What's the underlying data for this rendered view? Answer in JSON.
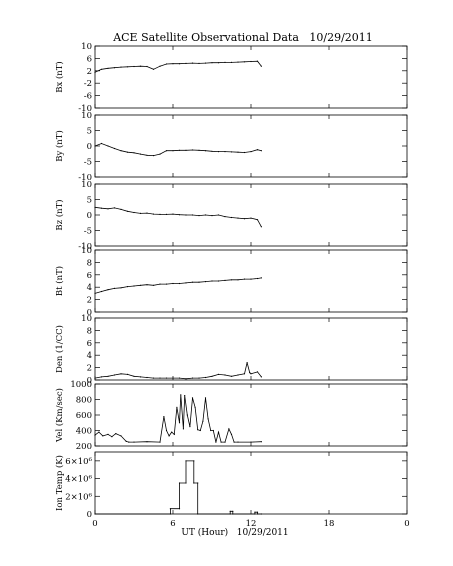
{
  "chart_data": {
    "type": "line",
    "title": "ACE Satellite Observational Data   10/29/2011",
    "xlabel": "UT (Hour)   10/29/2011",
    "xlim": [
      0,
      24
    ],
    "x_ticks": [
      "0",
      "6",
      "12",
      "18",
      "0"
    ],
    "panels": [
      {
        "key": "bx",
        "ylabel": "Bx (nT)",
        "ylim": [
          -10,
          10
        ],
        "y_ticks": [
          "10",
          "6",
          "2",
          "-2",
          "-6",
          "-10"
        ],
        "y_tick_values": [
          10,
          6,
          2,
          -2,
          -6,
          -10
        ],
        "series": {
          "x": [
            0,
            0.5,
            1,
            1.5,
            2,
            2.5,
            3,
            3.5,
            4,
            4.5,
            5,
            5.5,
            6,
            6.5,
            7,
            7.5,
            8,
            8.5,
            9,
            9.5,
            10,
            10.5,
            11,
            11.5,
            12,
            12.5,
            12.8
          ],
          "y": [
            1.5,
            2.5,
            2.8,
            3.0,
            3.2,
            3.3,
            3.4,
            3.5,
            3.4,
            2.5,
            3.5,
            4.2,
            4.3,
            4.3,
            4.4,
            4.5,
            4.4,
            4.5,
            4.6,
            4.6,
            4.7,
            4.7,
            4.8,
            4.9,
            5.0,
            5.1,
            3.5
          ]
        }
      },
      {
        "key": "by",
        "ylabel": "By (nT)",
        "ylim": [
          -10,
          10
        ],
        "y_ticks": [
          "10",
          "5",
          "0",
          "-5",
          "-10"
        ],
        "y_tick_values": [
          10,
          5,
          0,
          -5,
          -10
        ],
        "series": {
          "x": [
            0,
            0.5,
            1,
            1.5,
            2,
            2.5,
            3,
            3.5,
            4,
            4.5,
            5,
            5.5,
            6,
            6.5,
            7,
            7.5,
            8,
            8.5,
            9,
            9.5,
            10,
            10.5,
            11,
            11.5,
            12,
            12.5,
            12.8
          ],
          "y": [
            0,
            0.8,
            0,
            -0.8,
            -1.5,
            -2.0,
            -2.2,
            -2.6,
            -3.0,
            -3.1,
            -2.6,
            -1.5,
            -1.5,
            -1.4,
            -1.4,
            -1.3,
            -1.4,
            -1.5,
            -1.7,
            -1.8,
            -1.8,
            -1.9,
            -2.0,
            -2.1,
            -1.8,
            -1.2,
            -1.5
          ]
        }
      },
      {
        "key": "bz",
        "ylabel": "Bz (nT)",
        "ylim": [
          -10,
          10
        ],
        "y_ticks": [
          "10",
          "5",
          "0",
          "-5",
          "-10"
        ],
        "y_tick_values": [
          10,
          5,
          0,
          -5,
          -10
        ],
        "series": {
          "x": [
            0,
            0.5,
            1,
            1.5,
            2,
            2.5,
            3,
            3.5,
            4,
            4.5,
            5,
            5.5,
            6,
            6.5,
            7,
            7.5,
            8,
            8.5,
            9,
            9.5,
            10,
            10.5,
            11,
            11.5,
            12,
            12.5,
            12.8
          ],
          "y": [
            2.5,
            2.2,
            2.0,
            2.3,
            1.8,
            1.2,
            0.8,
            0.5,
            0.6,
            0.3,
            0.2,
            0.2,
            0.3,
            0.1,
            0,
            0,
            -0.2,
            0,
            -0.2,
            0,
            -0.5,
            -0.8,
            -1.0,
            -1.2,
            -1.0,
            -1.5,
            -3.8
          ]
        }
      },
      {
        "key": "bt",
        "ylabel": "Bt (nT)",
        "ylim": [
          0,
          10
        ],
        "y_ticks": [
          "10",
          "8",
          "6",
          "4",
          "2",
          "0"
        ],
        "y_tick_values": [
          10,
          8,
          6,
          4,
          2,
          0
        ],
        "series": {
          "x": [
            0,
            0.5,
            1,
            1.5,
            2,
            2.5,
            3,
            3.5,
            4,
            4.5,
            5,
            5.5,
            6,
            6.5,
            7,
            7.5,
            8,
            8.5,
            9,
            9.5,
            10,
            10.5,
            11,
            11.5,
            12,
            12.5,
            12.8
          ],
          "y": [
            3.0,
            3.3,
            3.6,
            3.8,
            3.9,
            4.1,
            4.2,
            4.3,
            4.4,
            4.3,
            4.5,
            4.5,
            4.6,
            4.6,
            4.7,
            4.8,
            4.8,
            4.9,
            5.0,
            5.0,
            5.1,
            5.2,
            5.2,
            5.3,
            5.3,
            5.4,
            5.5
          ]
        }
      },
      {
        "key": "den",
        "ylabel": "Den (1/CC)",
        "ylim": [
          0,
          10
        ],
        "y_ticks": [
          "10",
          "8",
          "6",
          "4",
          "2",
          "0"
        ],
        "y_tick_values": [
          10,
          8,
          6,
          4,
          2,
          0
        ],
        "series": {
          "x": [
            0,
            0.5,
            1,
            1.5,
            2,
            2.5,
            3,
            3.5,
            4,
            4.5,
            5,
            5.5,
            6,
            6.5,
            7,
            7.5,
            8,
            8.5,
            9,
            9.5,
            10,
            10.5,
            11,
            11.5,
            11.7,
            11.9,
            12,
            12.5,
            12.8
          ],
          "y": [
            0.3,
            0.5,
            0.6,
            0.8,
            1.0,
            0.9,
            0.6,
            0.5,
            0.4,
            0.3,
            0.3,
            0.3,
            0.3,
            0.3,
            0.2,
            0.3,
            0.3,
            0.4,
            0.6,
            0.9,
            0.8,
            0.6,
            0.8,
            1.0,
            2.8,
            1.2,
            1.0,
            1.3,
            0.5
          ]
        }
      },
      {
        "key": "vel",
        "ylabel": "Vel (Km/sec)",
        "ylim": [
          200,
          1000
        ],
        "y_ticks": [
          "1000",
          "800",
          "600",
          "400",
          "200"
        ],
        "y_tick_values": [
          1000,
          800,
          600,
          400,
          200
        ],
        "series": {
          "x": [
            0,
            0.3,
            0.6,
            1,
            1.3,
            1.6,
            2,
            2.4,
            2.6,
            3,
            4,
            5,
            5.3,
            5.5,
            5.7,
            5.9,
            6.1,
            6.3,
            6.5,
            6.6,
            6.8,
            6.9,
            7.1,
            7.3,
            7.5,
            7.7,
            7.9,
            8.1,
            8.3,
            8.5,
            8.7,
            8.9,
            9.1,
            9.3,
            9.5,
            9.7,
            10,
            10.3,
            10.5,
            10.7,
            11,
            12,
            12.8
          ],
          "y": [
            340,
            380,
            330,
            350,
            320,
            360,
            330,
            260,
            250,
            250,
            255,
            250,
            580,
            400,
            330,
            380,
            350,
            700,
            500,
            860,
            420,
            850,
            600,
            450,
            820,
            700,
            410,
            400,
            520,
            820,
            550,
            400,
            400,
            250,
            380,
            250,
            250,
            420,
            350,
            250,
            250,
            250,
            255
          ]
        }
      },
      {
        "key": "temp",
        "ylabel": "Ion Temp (K)",
        "ylim": [
          0,
          7000000
        ],
        "y_ticks": [
          "6×10⁶",
          "4×10⁶",
          "2×10⁶",
          "0"
        ],
        "y_tick_values": [
          6000000,
          4000000,
          2000000,
          0
        ],
        "series": {
          "x": [
            0,
            5.8,
            5.8,
            6.5,
            6.5,
            7.0,
            7.0,
            7.6,
            7.6,
            7.9,
            7.9,
            10.4,
            10.4,
            10.6,
            10.6,
            12.3,
            12.3,
            12.5,
            12.5,
            12.8
          ],
          "y": [
            0,
            0,
            600000,
            600000,
            3500000,
            3500000,
            6000000,
            6000000,
            3500000,
            3500000,
            0,
            0,
            300000,
            300000,
            0,
            0,
            200000,
            200000,
            0,
            0
          ]
        }
      }
    ]
  }
}
